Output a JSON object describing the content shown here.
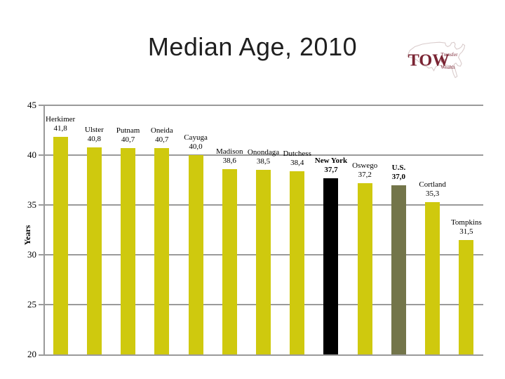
{
  "title": "Median Age, 2010",
  "logo": {
    "acronym": "TOW",
    "words": [
      "Transfer",
      "Of",
      "Wealth"
    ],
    "text_color": "#7a2433",
    "map_outline_color": "#d9cbcb"
  },
  "chart_data": {
    "type": "bar",
    "title": "Median Age, 2010",
    "xlabel": "",
    "ylabel": "Years",
    "ylim": [
      20,
      45
    ],
    "yticks": [
      20,
      25,
      30,
      35,
      40,
      45
    ],
    "grid": true,
    "legend": "none",
    "categories": [
      "Herkimer",
      "Ulster",
      "Putnam",
      "Oneida",
      "Cayuga",
      "Madison",
      "Onondaga",
      "Dutchess",
      "New York",
      "Oswego",
      "U.S.",
      "Cortland",
      "Tompkins"
    ],
    "values": [
      41.8,
      40.8,
      40.7,
      40.7,
      40.0,
      38.6,
      38.5,
      38.4,
      37.7,
      37.2,
      37.0,
      35.3,
      31.5
    ],
    "value_labels": [
      "41,8",
      "40,8",
      "40,7",
      "40,7",
      "40,0",
      "38,6",
      "38,5",
      "38,4",
      "37,7",
      "37,2",
      "37,0",
      "35,3",
      "31,5"
    ],
    "bar_colors": [
      "#cfc90e",
      "#cfc90e",
      "#cfc90e",
      "#cfc90e",
      "#cfc90e",
      "#cfc90e",
      "#cfc90e",
      "#cfc90e",
      "#000000",
      "#cfc90e",
      "#73754a",
      "#cfc90e",
      "#cfc90e"
    ],
    "bold_labels": [
      false,
      false,
      false,
      false,
      false,
      false,
      false,
      false,
      true,
      false,
      true,
      false,
      false
    ],
    "default_bar_color": "#cfc90e",
    "highlight_black": "#000000",
    "highlight_olive": "#73754a",
    "axis_color": "#9a9a9a"
  }
}
